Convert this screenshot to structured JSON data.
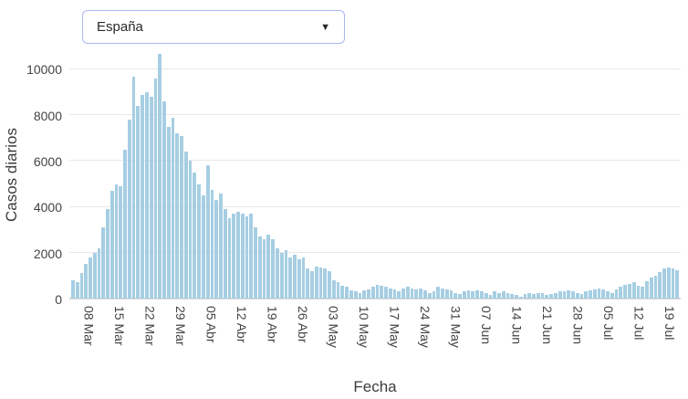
{
  "dropdown": {
    "selected": "España",
    "caret": "▼"
  },
  "chart_data": {
    "type": "bar",
    "title": "",
    "xlabel": "Fecha",
    "ylabel": "Casos diarios",
    "ylim": [
      0,
      10800
    ],
    "yticks": [
      0,
      2000,
      4000,
      6000,
      8000,
      10000
    ],
    "bar_color": "#a6cee3",
    "grid": true,
    "legend": "none",
    "tick_labels": [
      "08 Mar",
      "15 Mar",
      "22 Mar",
      "29 Mar",
      "05 Abr",
      "12 Abr",
      "19 Abr",
      "26 Abr",
      "03 May",
      "10 May",
      "17 May",
      "24 May",
      "31 May",
      "07 Jun",
      "14 Jun",
      "21 Jun",
      "28 Jun",
      "05 Jul",
      "12 Jul",
      "19 Jul"
    ],
    "x": [
      "04 Mar",
      "05 Mar",
      "06 Mar",
      "07 Mar",
      "08 Mar",
      "09 Mar",
      "10 Mar",
      "11 Mar",
      "12 Mar",
      "13 Mar",
      "14 Mar",
      "15 Mar",
      "16 Mar",
      "17 Mar",
      "18 Mar",
      "19 Mar",
      "20 Mar",
      "21 Mar",
      "22 Mar",
      "23 Mar",
      "24 Mar",
      "25 Mar",
      "26 Mar",
      "27 Mar",
      "28 Mar",
      "29 Mar",
      "30 Mar",
      "31 Mar",
      "01 Abr",
      "02 Abr",
      "03 Abr",
      "04 Abr",
      "05 Abr",
      "06 Abr",
      "07 Abr",
      "08 Abr",
      "09 Abr",
      "10 Abr",
      "11 Abr",
      "12 Abr",
      "13 Abr",
      "14 Abr",
      "15 Abr",
      "16 Abr",
      "17 Abr",
      "18 Abr",
      "19 Abr",
      "20 Abr",
      "21 Abr",
      "22 Abr",
      "23 Abr",
      "24 Abr",
      "25 Abr",
      "26 Abr",
      "27 Abr",
      "28 Abr",
      "29 Abr",
      "30 Abr",
      "01 May",
      "02 May",
      "03 May",
      "04 May",
      "05 May",
      "06 May",
      "07 May",
      "08 May",
      "09 May",
      "10 May",
      "11 May",
      "12 May",
      "13 May",
      "14 May",
      "15 May",
      "16 May",
      "17 May",
      "18 May",
      "19 May",
      "20 May",
      "21 May",
      "22 May",
      "23 May",
      "24 May",
      "25 May",
      "26 May",
      "27 May",
      "28 May",
      "29 May",
      "30 May",
      "31 May",
      "01 Jun",
      "02 Jun",
      "03 Jun",
      "04 Jun",
      "05 Jun",
      "06 Jun",
      "07 Jun",
      "08 Jun",
      "09 Jun",
      "10 Jun",
      "11 Jun",
      "12 Jun",
      "13 Jun",
      "14 Jun",
      "15 Jun",
      "16 Jun",
      "17 Jun",
      "18 Jun",
      "19 Jun",
      "20 Jun",
      "21 Jun",
      "22 Jun",
      "23 Jun",
      "24 Jun",
      "25 Jun",
      "26 Jun",
      "27 Jun",
      "28 Jun",
      "29 Jun",
      "30 Jun",
      "01 Jul",
      "02 Jul",
      "03 Jul",
      "04 Jul",
      "05 Jul",
      "06 Jul",
      "07 Jul",
      "08 Jul",
      "09 Jul",
      "10 Jul",
      "11 Jul",
      "12 Jul",
      "13 Jul",
      "14 Jul",
      "15 Jul",
      "16 Jul",
      "17 Jul",
      "18 Jul",
      "19 Jul",
      "20 Jul",
      "21 Jul"
    ],
    "values": [
      800,
      700,
      1100,
      1500,
      1800,
      2000,
      2200,
      3100,
      3900,
      4700,
      5000,
      4900,
      6500,
      7800,
      9700,
      8400,
      8900,
      9000,
      8800,
      9600,
      10700,
      8600,
      7500,
      7900,
      7200,
      7100,
      6400,
      6000,
      5500,
      5000,
      4500,
      5800,
      4750,
      4300,
      4600,
      3900,
      3500,
      3700,
      3800,
      3700,
      3600,
      3700,
      3100,
      2700,
      2600,
      2800,
      2600,
      2200,
      2000,
      2100,
      1800,
      1900,
      1700,
      1800,
      1300,
      1200,
      1400,
      1350,
      1300,
      1200,
      800,
      700,
      550,
      500,
      350,
      300,
      250,
      350,
      400,
      500,
      600,
      550,
      500,
      450,
      400,
      300,
      450,
      500,
      450,
      400,
      450,
      350,
      250,
      300,
      500,
      450,
      400,
      350,
      250,
      200,
      300,
      350,
      300,
      350,
      300,
      250,
      150,
      300,
      250,
      300,
      250,
      200,
      150,
      100,
      200,
      250,
      200,
      250,
      250,
      150,
      200,
      250,
      300,
      300,
      350,
      300,
      250,
      200,
      300,
      350,
      400,
      450,
      400,
      300,
      250,
      400,
      500,
      600,
      650,
      700,
      550,
      500,
      750,
      900,
      1000,
      1150,
      1300,
      1350,
      1300,
      1250
    ]
  }
}
